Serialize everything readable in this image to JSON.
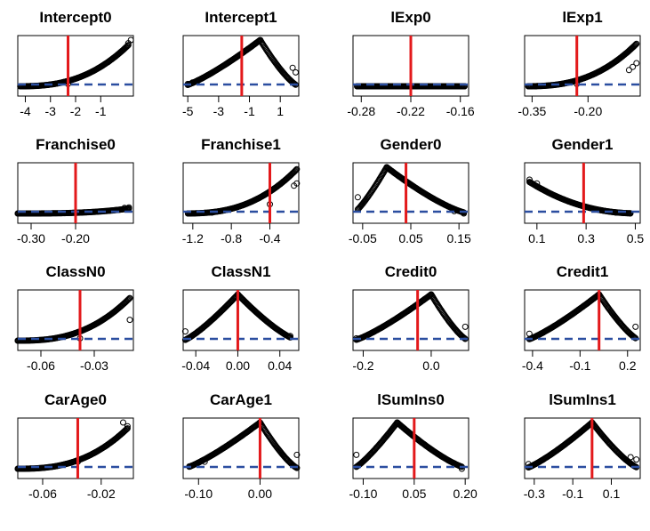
{
  "chart_data": [
    {
      "title": "Intercept0",
      "shape": "rise",
      "xticks": [
        "-4",
        "-3",
        "-2",
        "-1"
      ],
      "xlim": [
        -4.3,
        0.3
      ],
      "vline": -2.3,
      "points": [
        [
          -4.2,
          0.0
        ],
        [
          -4.0,
          0.0
        ],
        [
          -2.3,
          0.05
        ],
        [
          0.2,
          1.0
        ],
        [
          0.1,
          0.93
        ]
      ]
    },
    {
      "title": "Intercept1",
      "shape": "peak",
      "xticks": [
        "-5",
        "-3",
        "-1",
        "1"
      ],
      "xlim": [
        -5.3,
        2.2
      ],
      "vline": -1.5,
      "points": [
        [
          -5.0,
          0.05
        ],
        [
          -4.7,
          0.08
        ],
        [
          -4.4,
          0.1
        ],
        [
          -0.3,
          1.0
        ],
        [
          1.8,
          0.4
        ],
        [
          2.0,
          0.3
        ]
      ]
    },
    {
      "title": "lExp0",
      "shape": "flat",
      "xticks": [
        "-0.28",
        "-0.22",
        "-0.16"
      ],
      "xlim": [
        -0.29,
        -0.15
      ],
      "vline": -0.22,
      "points": [
        [
          -0.285,
          0.0
        ],
        [
          -0.155,
          0.0
        ]
      ]
    },
    {
      "title": "lExp1",
      "shape": "rise",
      "xticks": [
        "-0.35",
        "-0.20"
      ],
      "xlim": [
        -0.37,
        -0.06
      ],
      "vline": -0.23,
      "points": [
        [
          -0.36,
          0.0
        ],
        [
          -0.34,
          0.0
        ],
        [
          -0.23,
          0.05
        ],
        [
          -0.09,
          0.35
        ],
        [
          -0.08,
          0.42
        ],
        [
          -0.07,
          0.5
        ]
      ]
    },
    {
      "title": "Franchise0",
      "shape": "flat-rise",
      "xticks": [
        "-0.30",
        "-0.20"
      ],
      "xlim": [
        -0.33,
        -0.07
      ],
      "vline": -0.2,
      "points": [
        [
          -0.33,
          0.0
        ],
        [
          -0.2,
          0.02
        ],
        [
          -0.09,
          0.12
        ],
        [
          -0.08,
          0.13
        ]
      ]
    },
    {
      "title": "Franchise1",
      "shape": "rise",
      "xticks": [
        "-1.2",
        "-0.8",
        "-0.4"
      ],
      "xlim": [
        -1.3,
        -0.1
      ],
      "vline": -0.4,
      "points": [
        [
          -1.25,
          0.0
        ],
        [
          -1.0,
          0.02
        ],
        [
          -0.4,
          0.2
        ],
        [
          -0.15,
          0.6
        ],
        [
          -0.12,
          0.65
        ]
      ]
    },
    {
      "title": "Gender0",
      "shape": "peak",
      "xticks": [
        "-0.05",
        "0.05",
        "0.15"
      ],
      "xlim": [
        -0.07,
        0.17
      ],
      "vline": 0.04,
      "points": [
        [
          -0.06,
          0.35
        ],
        [
          0.0,
          1.0
        ],
        [
          0.14,
          0.05
        ],
        [
          0.16,
          0.0
        ]
      ]
    },
    {
      "title": "Gender1",
      "shape": "fall",
      "xticks": [
        "0.1",
        "0.3",
        "0.5"
      ],
      "xlim": [
        0.05,
        0.52
      ],
      "vline": 0.29,
      "points": [
        [
          0.07,
          0.73
        ],
        [
          0.1,
          0.65
        ],
        [
          0.29,
          0.15
        ],
        [
          0.42,
          0.02
        ],
        [
          0.48,
          0.0
        ]
      ]
    },
    {
      "title": "ClassN0",
      "shape": "rise",
      "xticks": [
        "-0.06",
        "-0.03"
      ],
      "xlim": [
        -0.073,
        -0.008
      ],
      "vline": -0.038,
      "points": [
        [
          -0.073,
          0.0
        ],
        [
          -0.038,
          0.05
        ],
        [
          -0.01,
          0.45
        ]
      ]
    },
    {
      "title": "ClassN1",
      "shape": "peak",
      "xticks": [
        "-0.04",
        "0.00",
        "0.04"
      ],
      "xlim": [
        -0.052,
        0.058
      ],
      "vline": 0.0,
      "points": [
        [
          -0.05,
          0.2
        ],
        [
          0.0,
          1.0
        ],
        [
          0.05,
          0.1
        ]
      ]
    },
    {
      "title": "Credit0",
      "shape": "peak",
      "xticks": [
        "-0.2",
        "0.0"
      ],
      "xlim": [
        -0.23,
        0.11
      ],
      "vline": -0.04,
      "points": [
        [
          -0.22,
          0.05
        ],
        [
          0.0,
          1.0
        ],
        [
          0.1,
          0.3
        ]
      ]
    },
    {
      "title": "Credit1",
      "shape": "peak",
      "xticks": [
        "-0.4",
        "-0.1",
        "0.2"
      ],
      "xlim": [
        -0.45,
        0.28
      ],
      "vline": 0.02,
      "points": [
        [
          -0.42,
          0.15
        ],
        [
          0.02,
          1.0
        ],
        [
          0.25,
          0.3
        ]
      ]
    },
    {
      "title": "CarAge0",
      "shape": "rise",
      "xticks": [
        "-0.06",
        "-0.02"
      ],
      "xlim": [
        -0.077,
        0.002
      ],
      "vline": -0.036,
      "points": [
        [
          -0.077,
          0.0
        ],
        [
          -0.036,
          0.15
        ],
        [
          -0.005,
          1.0
        ],
        [
          -0.002,
          0.92
        ]
      ]
    },
    {
      "title": "CarAge1",
      "shape": "peak",
      "xticks": [
        "-0.10",
        "0.00"
      ],
      "xlim": [
        -0.125,
        0.063
      ],
      "vline": 0.0,
      "points": [
        [
          -0.115,
          0.05
        ],
        [
          -0.09,
          0.15
        ],
        [
          0.0,
          1.0
        ],
        [
          0.06,
          0.3
        ]
      ]
    },
    {
      "title": "lSumIns0",
      "shape": "peak",
      "xticks": [
        "-0.10",
        "0.05",
        "0.20"
      ],
      "xlim": [
        -0.13,
        0.21
      ],
      "vline": 0.05,
      "points": [
        [
          -0.12,
          0.3
        ],
        [
          0.0,
          1.0
        ],
        [
          0.19,
          0.0
        ]
      ]
    },
    {
      "title": "lSumIns1",
      "shape": "peak",
      "xticks": [
        "-0.3",
        "-0.1",
        "0.1"
      ],
      "xlim": [
        -0.35,
        0.25
      ],
      "vline": 0.0,
      "points": [
        [
          -0.33,
          0.1
        ],
        [
          0.0,
          1.0
        ],
        [
          0.2,
          0.25
        ],
        [
          0.23,
          0.2
        ]
      ]
    }
  ],
  "colors": {
    "vline": "#e3191b",
    "hline": "#2b4ea0",
    "points": "#000000",
    "frame": "#000000"
  }
}
